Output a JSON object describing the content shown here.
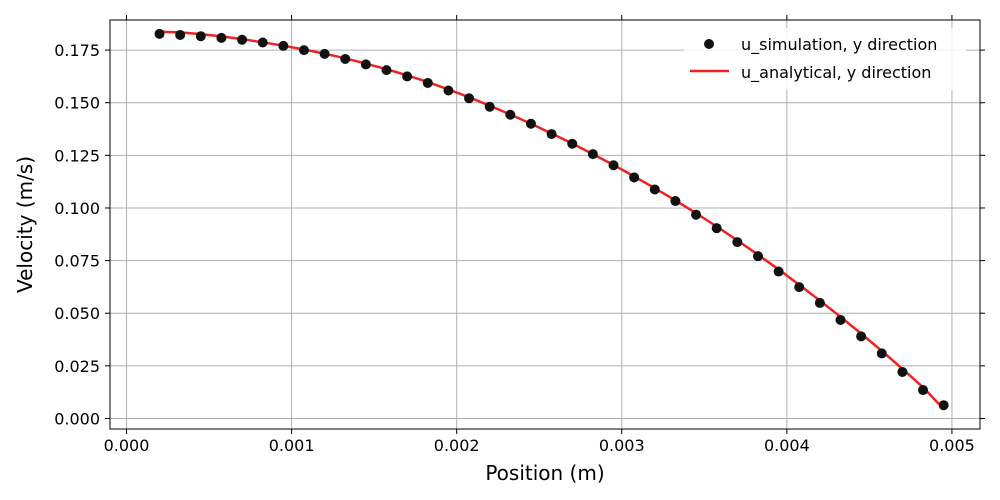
{
  "colors": {
    "simulation_marker": "#111111",
    "analytical_line": "#ee2222",
    "grid": "#b0b0b0",
    "axes": "#000000",
    "background": "#ffffff"
  },
  "chart_data": {
    "type": "scatter",
    "title": "",
    "xlabel": "Position (m)",
    "ylabel": "Velocity (m/s)",
    "xlim": [
      -0.0001,
      0.00517
    ],
    "ylim": [
      -0.005,
      0.1893
    ],
    "grid": true,
    "legend_position": "top-right",
    "x_ticks": [
      0.0,
      0.001,
      0.002,
      0.003,
      0.004,
      0.005
    ],
    "x_tick_labels": [
      "0.000",
      "0.001",
      "0.002",
      "0.003",
      "0.004",
      "0.005"
    ],
    "y_ticks": [
      0.0,
      0.025,
      0.05,
      0.075,
      0.1,
      0.125,
      0.15,
      0.175
    ],
    "y_tick_labels": [
      "0.000",
      "0.025",
      "0.050",
      "0.075",
      "0.100",
      "0.125",
      "0.150",
      "0.175"
    ],
    "series": [
      {
        "name": "u_simulation, y direction",
        "style": "markers",
        "x": [
          0.0002,
          0.000325,
          0.00045,
          0.000575,
          0.0007,
          0.000825,
          0.00095,
          0.001075,
          0.0012,
          0.001325,
          0.00145,
          0.001575,
          0.0017,
          0.001825,
          0.00195,
          0.002075,
          0.0022,
          0.002325,
          0.00245,
          0.002575,
          0.0027,
          0.002825,
          0.00295,
          0.003075,
          0.0032,
          0.003325,
          0.00345,
          0.003575,
          0.0037,
          0.003825,
          0.00395,
          0.004075,
          0.0042,
          0.004325,
          0.00445,
          0.004575,
          0.0047,
          0.004825,
          0.00495
        ],
        "y": [
          0.1827,
          0.1822,
          0.1816,
          0.1808,
          0.1799,
          0.1786,
          0.177,
          0.175,
          0.1732,
          0.1708,
          0.1682,
          0.1655,
          0.1625,
          0.1594,
          0.1558,
          0.1521,
          0.1481,
          0.1443,
          0.14,
          0.1351,
          0.1305,
          0.1256,
          0.1203,
          0.1145,
          0.1088,
          0.1033,
          0.0968,
          0.0904,
          0.0838,
          0.0771,
          0.0698,
          0.0624,
          0.0549,
          0.0468,
          0.039,
          0.0309,
          0.0221,
          0.0135,
          0.0063
        ]
      },
      {
        "name": "u_analytical, y direction",
        "style": "line",
        "x": [
          0.0002,
          0.000325,
          0.00045,
          0.000575,
          0.0007,
          0.000825,
          0.00095,
          0.001075,
          0.0012,
          0.001325,
          0.00145,
          0.001575,
          0.0017,
          0.001825,
          0.00195,
          0.002075,
          0.0022,
          0.002325,
          0.00245,
          0.002575,
          0.0027,
          0.002825,
          0.00295,
          0.003075,
          0.0032,
          0.003325,
          0.00345,
          0.003575,
          0.0037,
          0.003825,
          0.00395,
          0.004075,
          0.0042,
          0.004325,
          0.00445,
          0.004575,
          0.0047,
          0.004825,
          0.00495
        ],
        "y": [
          0.1837,
          0.1834,
          0.1826,
          0.1815,
          0.1802,
          0.1787,
          0.1771,
          0.1753,
          0.1733,
          0.1711,
          0.1686,
          0.1659,
          0.163,
          0.1598,
          0.1563,
          0.1526,
          0.1486,
          0.1444,
          0.14,
          0.1354,
          0.1306,
          0.1256,
          0.1204,
          0.115,
          0.1094,
          0.1036,
          0.0975,
          0.0912,
          0.0846,
          0.0778,
          0.0708,
          0.0635,
          0.056,
          0.0483,
          0.0403,
          0.0321,
          0.0236,
          0.0148,
          0.0045
        ]
      }
    ]
  }
}
